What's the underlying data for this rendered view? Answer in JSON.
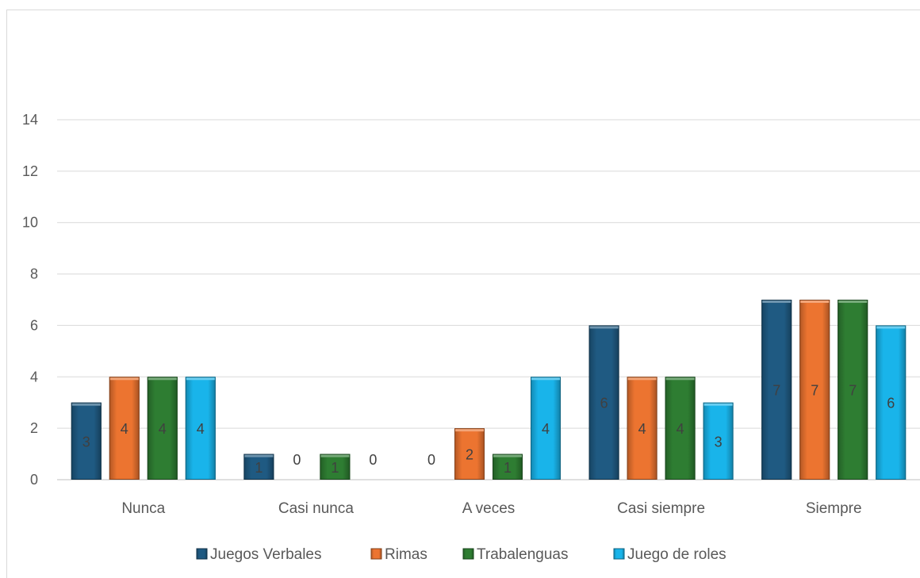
{
  "chart_data": {
    "type": "bar",
    "title": "",
    "xlabel": "",
    "ylabel": "",
    "ylim": [
      0,
      14
    ],
    "yticks": [
      0,
      2,
      4,
      6,
      8,
      10,
      12,
      14
    ],
    "grid": true,
    "legend_position": "bottom",
    "categories": [
      "Nunca",
      "Casi nunca",
      "A veces",
      "Casi siempre",
      "Siempre"
    ],
    "series": [
      {
        "name": "Juegos Verbales",
        "color": "#1f5a82",
        "values": [
          3,
          1,
          0,
          6,
          7
        ]
      },
      {
        "name": "Rimas",
        "color": "#ec7430",
        "values": [
          4,
          0,
          2,
          4,
          7
        ]
      },
      {
        "name": "Trabalenguas",
        "color": "#2e7d32",
        "values": [
          4,
          1,
          1,
          4,
          7
        ]
      },
      {
        "name": "Juego de roles",
        "color": "#19b4ea",
        "values": [
          4,
          0,
          4,
          3,
          6
        ]
      }
    ]
  }
}
